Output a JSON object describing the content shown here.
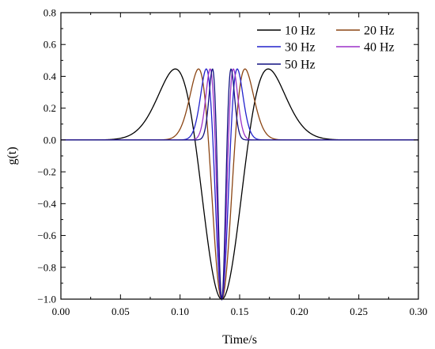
{
  "chart_data": {
    "type": "line",
    "xlabel": "Time/s",
    "ylabel": "g(t)",
    "xlim": [
      0.0,
      0.3
    ],
    "ylim": [
      -1.0,
      0.8
    ],
    "x_ticks": [
      0.0,
      0.05,
      0.1,
      0.15,
      0.2,
      0.25,
      0.3
    ],
    "x_tick_labels": [
      "0.00",
      "0.05",
      "0.10",
      "0.15",
      "0.20",
      "0.25",
      "0.30"
    ],
    "y_ticks": [
      -1.0,
      -0.8,
      -0.6,
      -0.4,
      -0.2,
      0.0,
      0.2,
      0.4,
      0.6,
      0.8
    ],
    "y_tick_labels": [
      "−1.0",
      "−0.8",
      "−0.6",
      "−0.4",
      "−0.2",
      "0.0",
      "0.2",
      "0.4",
      "0.6",
      "0.8"
    ],
    "grid": false,
    "legend_position": "top-right",
    "center_time": 0.135,
    "series": [
      {
        "name": "10 Hz",
        "frequency": 10,
        "color": "#000000"
      },
      {
        "name": "20 Hz",
        "frequency": 20,
        "color": "#8b4513"
      },
      {
        "name": "30 Hz",
        "frequency": 30,
        "color": "#2222cc"
      },
      {
        "name": "40 Hz",
        "frequency": 40,
        "color": "#9b30c8"
      },
      {
        "name": "50 Hz",
        "frequency": 50,
        "color": "#101080"
      }
    ]
  }
}
